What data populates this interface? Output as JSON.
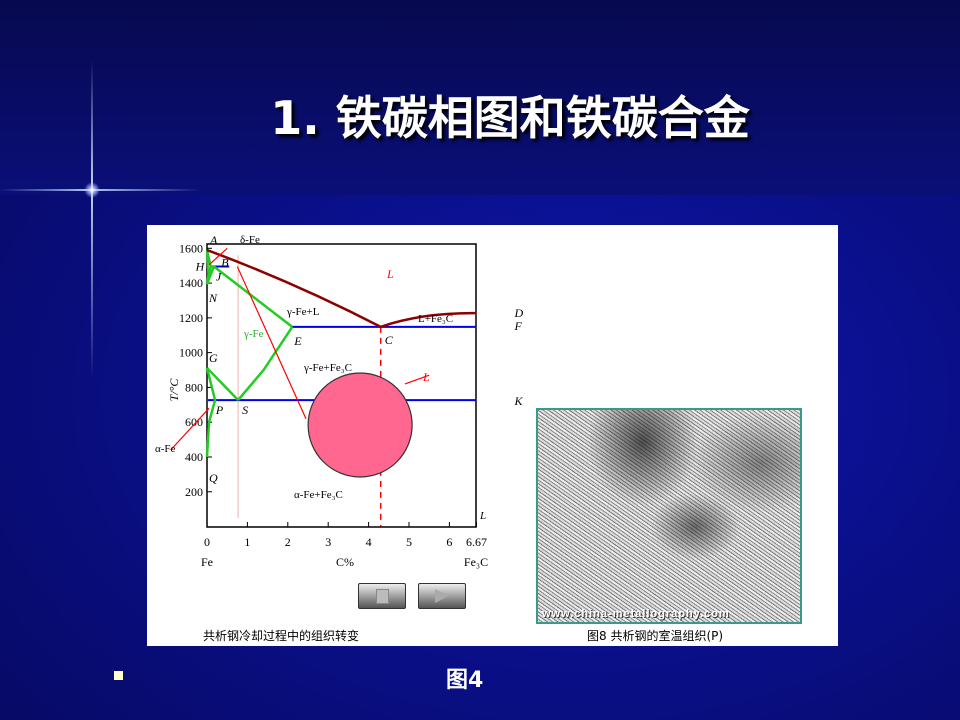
{
  "slide": {
    "title": "1. 铁碳相图和铁碳合金",
    "figure_label": "图4"
  },
  "panel": {
    "left_caption": "共析钢冷却过程中的组织转变",
    "right_caption": "图8  共析钢的室温组织(P)",
    "watermark": "www.china-metallography.com",
    "stop_button": "stop",
    "play_button": "play"
  },
  "chart_data": {
    "type": "phase-diagram",
    "xlabel": "C%",
    "ylabel": "T/°C",
    "xlim": [
      0,
      6.67
    ],
    "ylim": [
      0,
      1620
    ],
    "xticks": [
      "0",
      "1",
      "2",
      "3",
      "4",
      "5",
      "6",
      "6.67"
    ],
    "yticks": [
      "200",
      "400",
      "600",
      "800",
      "1000",
      "1200",
      "1400",
      "1600"
    ],
    "x_end_labels": {
      "left": "Fe",
      "right": "Fe₃C"
    },
    "points": {
      "A": [
        0,
        1590
      ],
      "B": [
        0.55,
        1495
      ],
      "H": [
        0.09,
        1495
      ],
      "J": [
        0.17,
        1495
      ],
      "N": [
        0,
        1394
      ],
      "E": [
        2.11,
        1148
      ],
      "C": [
        4.3,
        1148
      ],
      "F": [
        6.67,
        1148
      ],
      "D": [
        6.67,
        1227
      ],
      "G": [
        0,
        912
      ],
      "S": [
        0.77,
        727
      ],
      "P": [
        0.0218,
        727
      ],
      "K": [
        6.67,
        727
      ],
      "Q": [
        0,
        400
      ]
    },
    "region_labels": {
      "L": "L",
      "gamma_L": "γ-Fe+L",
      "L_Fe3C": "L+Fe₃C",
      "gamma": "γ-Fe",
      "gamma_Fe3C": "γ-Fe+Fe₃C",
      "alpha_Fe3C": "α-Fe+Fe₃C",
      "delta": "δ-Fe",
      "alpha": "α-Fe",
      "circle_L": "L",
      "bottom_L": "L"
    },
    "composition_line": 0.77,
    "dashed_line": 4.3,
    "circle_center": [
      3.79,
      584
    ],
    "colors": {
      "liquidus": "#8b0000",
      "isotherm": "#0000ee",
      "solid": "#22cc22",
      "marker": "#ff0000",
      "circle": "#ff6690"
    }
  }
}
